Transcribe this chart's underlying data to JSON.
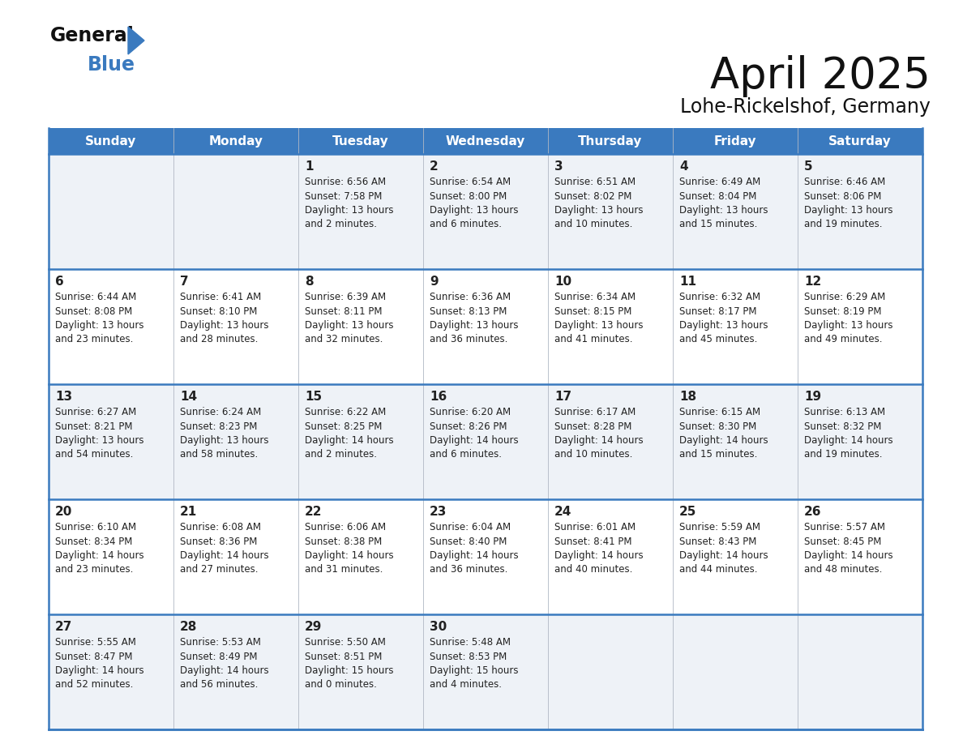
{
  "title": "April 2025",
  "subtitle": "Lohe-Rickelshof, Germany",
  "header_color": "#3a7abf",
  "header_text_color": "#ffffff",
  "border_color": "#3a7abf",
  "row_colors": [
    "#eef2f7",
    "#ffffff"
  ],
  "text_color": "#222222",
  "day_names": [
    "Sunday",
    "Monday",
    "Tuesday",
    "Wednesday",
    "Thursday",
    "Friday",
    "Saturday"
  ],
  "weeks": [
    [
      {
        "day": "",
        "lines": []
      },
      {
        "day": "",
        "lines": []
      },
      {
        "day": "1",
        "lines": [
          "Sunrise: 6:56 AM",
          "Sunset: 7:58 PM",
          "Daylight: 13 hours",
          "and 2 minutes."
        ]
      },
      {
        "day": "2",
        "lines": [
          "Sunrise: 6:54 AM",
          "Sunset: 8:00 PM",
          "Daylight: 13 hours",
          "and 6 minutes."
        ]
      },
      {
        "day": "3",
        "lines": [
          "Sunrise: 6:51 AM",
          "Sunset: 8:02 PM",
          "Daylight: 13 hours",
          "and 10 minutes."
        ]
      },
      {
        "day": "4",
        "lines": [
          "Sunrise: 6:49 AM",
          "Sunset: 8:04 PM",
          "Daylight: 13 hours",
          "and 15 minutes."
        ]
      },
      {
        "day": "5",
        "lines": [
          "Sunrise: 6:46 AM",
          "Sunset: 8:06 PM",
          "Daylight: 13 hours",
          "and 19 minutes."
        ]
      }
    ],
    [
      {
        "day": "6",
        "lines": [
          "Sunrise: 6:44 AM",
          "Sunset: 8:08 PM",
          "Daylight: 13 hours",
          "and 23 minutes."
        ]
      },
      {
        "day": "7",
        "lines": [
          "Sunrise: 6:41 AM",
          "Sunset: 8:10 PM",
          "Daylight: 13 hours",
          "and 28 minutes."
        ]
      },
      {
        "day": "8",
        "lines": [
          "Sunrise: 6:39 AM",
          "Sunset: 8:11 PM",
          "Daylight: 13 hours",
          "and 32 minutes."
        ]
      },
      {
        "day": "9",
        "lines": [
          "Sunrise: 6:36 AM",
          "Sunset: 8:13 PM",
          "Daylight: 13 hours",
          "and 36 minutes."
        ]
      },
      {
        "day": "10",
        "lines": [
          "Sunrise: 6:34 AM",
          "Sunset: 8:15 PM",
          "Daylight: 13 hours",
          "and 41 minutes."
        ]
      },
      {
        "day": "11",
        "lines": [
          "Sunrise: 6:32 AM",
          "Sunset: 8:17 PM",
          "Daylight: 13 hours",
          "and 45 minutes."
        ]
      },
      {
        "day": "12",
        "lines": [
          "Sunrise: 6:29 AM",
          "Sunset: 8:19 PM",
          "Daylight: 13 hours",
          "and 49 minutes."
        ]
      }
    ],
    [
      {
        "day": "13",
        "lines": [
          "Sunrise: 6:27 AM",
          "Sunset: 8:21 PM",
          "Daylight: 13 hours",
          "and 54 minutes."
        ]
      },
      {
        "day": "14",
        "lines": [
          "Sunrise: 6:24 AM",
          "Sunset: 8:23 PM",
          "Daylight: 13 hours",
          "and 58 minutes."
        ]
      },
      {
        "day": "15",
        "lines": [
          "Sunrise: 6:22 AM",
          "Sunset: 8:25 PM",
          "Daylight: 14 hours",
          "and 2 minutes."
        ]
      },
      {
        "day": "16",
        "lines": [
          "Sunrise: 6:20 AM",
          "Sunset: 8:26 PM",
          "Daylight: 14 hours",
          "and 6 minutes."
        ]
      },
      {
        "day": "17",
        "lines": [
          "Sunrise: 6:17 AM",
          "Sunset: 8:28 PM",
          "Daylight: 14 hours",
          "and 10 minutes."
        ]
      },
      {
        "day": "18",
        "lines": [
          "Sunrise: 6:15 AM",
          "Sunset: 8:30 PM",
          "Daylight: 14 hours",
          "and 15 minutes."
        ]
      },
      {
        "day": "19",
        "lines": [
          "Sunrise: 6:13 AM",
          "Sunset: 8:32 PM",
          "Daylight: 14 hours",
          "and 19 minutes."
        ]
      }
    ],
    [
      {
        "day": "20",
        "lines": [
          "Sunrise: 6:10 AM",
          "Sunset: 8:34 PM",
          "Daylight: 14 hours",
          "and 23 minutes."
        ]
      },
      {
        "day": "21",
        "lines": [
          "Sunrise: 6:08 AM",
          "Sunset: 8:36 PM",
          "Daylight: 14 hours",
          "and 27 minutes."
        ]
      },
      {
        "day": "22",
        "lines": [
          "Sunrise: 6:06 AM",
          "Sunset: 8:38 PM",
          "Daylight: 14 hours",
          "and 31 minutes."
        ]
      },
      {
        "day": "23",
        "lines": [
          "Sunrise: 6:04 AM",
          "Sunset: 8:40 PM",
          "Daylight: 14 hours",
          "and 36 minutes."
        ]
      },
      {
        "day": "24",
        "lines": [
          "Sunrise: 6:01 AM",
          "Sunset: 8:41 PM",
          "Daylight: 14 hours",
          "and 40 minutes."
        ]
      },
      {
        "day": "25",
        "lines": [
          "Sunrise: 5:59 AM",
          "Sunset: 8:43 PM",
          "Daylight: 14 hours",
          "and 44 minutes."
        ]
      },
      {
        "day": "26",
        "lines": [
          "Sunrise: 5:57 AM",
          "Sunset: 8:45 PM",
          "Daylight: 14 hours",
          "and 48 minutes."
        ]
      }
    ],
    [
      {
        "day": "27",
        "lines": [
          "Sunrise: 5:55 AM",
          "Sunset: 8:47 PM",
          "Daylight: 14 hours",
          "and 52 minutes."
        ]
      },
      {
        "day": "28",
        "lines": [
          "Sunrise: 5:53 AM",
          "Sunset: 8:49 PM",
          "Daylight: 14 hours",
          "and 56 minutes."
        ]
      },
      {
        "day": "29",
        "lines": [
          "Sunrise: 5:50 AM",
          "Sunset: 8:51 PM",
          "Daylight: 15 hours",
          "and 0 minutes."
        ]
      },
      {
        "day": "30",
        "lines": [
          "Sunrise: 5:48 AM",
          "Sunset: 8:53 PM",
          "Daylight: 15 hours",
          "and 4 minutes."
        ]
      },
      {
        "day": "",
        "lines": []
      },
      {
        "day": "",
        "lines": []
      },
      {
        "day": "",
        "lines": []
      }
    ]
  ]
}
